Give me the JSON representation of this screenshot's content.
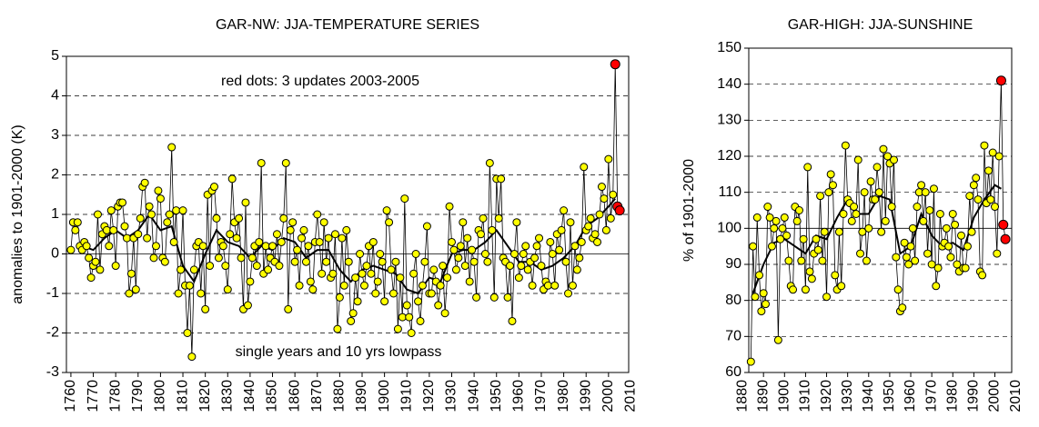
{
  "chart_data": [
    {
      "type": "line",
      "title": "GAR-NW: JJA-TEMPERATURE SERIES",
      "ylabel": "anomalies to 1901-2000 (K)",
      "annotations": [
        "red dots: 3 updates 2003-2005",
        "single years and 10 yrs lowpass"
      ],
      "xlim": [
        1758,
        2009
      ],
      "xticks": [
        1760,
        1770,
        1780,
        1790,
        1800,
        1810,
        1820,
        1830,
        1840,
        1850,
        1860,
        1870,
        1880,
        1890,
        1900,
        1910,
        1920,
        1930,
        1940,
        1950,
        1960,
        1970,
        1980,
        1990,
        2000,
        2010
      ],
      "ylim": [
        -3,
        5
      ],
      "yticks": [
        -3,
        -2,
        -1,
        0,
        1,
        2,
        3,
        4,
        5
      ],
      "grid": true,
      "baseline": 0,
      "series": [
        {
          "color": "#000000",
          "marker_color": "#ffff00",
          "highlight_color": "#ff0000",
          "highlight_from": 2003,
          "x": [
            1760,
            1761,
            1762,
            1763,
            1764,
            1765,
            1766,
            1767,
            1768,
            1769,
            1770,
            1771,
            1772,
            1773,
            1774,
            1775,
            1776,
            1777,
            1778,
            1779,
            1780,
            1781,
            1782,
            1783,
            1784,
            1785,
            1786,
            1787,
            1788,
            1789,
            1790,
            1791,
            1792,
            1793,
            1794,
            1795,
            1796,
            1797,
            1798,
            1799,
            1800,
            1801,
            1802,
            1803,
            1804,
            1805,
            1806,
            1807,
            1808,
            1809,
            1810,
            1811,
            1812,
            1813,
            1814,
            1815,
            1816,
            1817,
            1818,
            1819,
            1820,
            1821,
            1822,
            1823,
            1824,
            1825,
            1826,
            1827,
            1828,
            1829,
            1830,
            1831,
            1832,
            1833,
            1834,
            1835,
            1836,
            1837,
            1838,
            1839,
            1840,
            1841,
            1842,
            1843,
            1844,
            1845,
            1846,
            1847,
            1848,
            1849,
            1850,
            1851,
            1852,
            1853,
            1854,
            1855,
            1856,
            1857,
            1858,
            1859,
            1860,
            1861,
            1862,
            1863,
            1864,
            1865,
            1866,
            1867,
            1868,
            1869,
            1870,
            1871,
            1872,
            1873,
            1874,
            1875,
            1876,
            1877,
            1878,
            1879,
            1880,
            1881,
            1882,
            1883,
            1884,
            1885,
            1886,
            1887,
            1888,
            1889,
            1890,
            1891,
            1892,
            1893,
            1894,
            1895,
            1896,
            1897,
            1898,
            1899,
            1900,
            1901,
            1902,
            1903,
            1904,
            1905,
            1906,
            1907,
            1908,
            1909,
            1910,
            1911,
            1912,
            1913,
            1914,
            1915,
            1916,
            1917,
            1918,
            1919,
            1920,
            1921,
            1922,
            1923,
            1924,
            1925,
            1926,
            1927,
            1928,
            1929,
            1930,
            1931,
            1932,
            1933,
            1934,
            1935,
            1936,
            1937,
            1938,
            1939,
            1940,
            1941,
            1942,
            1943,
            1944,
            1945,
            1946,
            1947,
            1948,
            1949,
            1950,
            1951,
            1952,
            1953,
            1954,
            1955,
            1956,
            1957,
            1958,
            1959,
            1960,
            1961,
            1962,
            1963,
            1964,
            1965,
            1966,
            1967,
            1968,
            1969,
            1970,
            1971,
            1972,
            1973,
            1974,
            1975,
            1976,
            1977,
            1978,
            1979,
            1980,
            1981,
            1982,
            1983,
            1984,
            1985,
            1986,
            1987,
            1988,
            1989,
            1990,
            1991,
            1992,
            1993,
            1994,
            1995,
            1996,
            1997,
            1998,
            1999,
            2000,
            2001,
            2002,
            2003,
            2004,
            2005
          ],
          "values": [
            0.1,
            0.8,
            0.6,
            0.8,
            0.2,
            0.1,
            0.3,
            0.2,
            -0.1,
            -0.6,
            -0.3,
            -0.2,
            1.0,
            -0.4,
            0.5,
            0.7,
            0.6,
            0.2,
            1.1,
            0.6,
            -0.3,
            1.2,
            1.3,
            1.3,
            0.7,
            0.4,
            -1.0,
            -0.5,
            0.4,
            -0.9,
            0.5,
            0.9,
            1.7,
            1.8,
            0.4,
            1.2,
            1.0,
            -0.1,
            0.2,
            1.6,
            1.4,
            -0.1,
            -0.2,
            0.8,
            1.0,
            2.7,
            0.3,
            1.1,
            -1.0,
            -0.4,
            1.1,
            -0.8,
            -2.0,
            -0.8,
            -2.6,
            -0.4,
            0.2,
            0.3,
            -1.0,
            0.2,
            -1.4,
            1.5,
            -0.3,
            1.6,
            1.7,
            0.9,
            -0.1,
            0.3,
            0.2,
            -0.3,
            -0.9,
            0.5,
            1.9,
            0.8,
            0.4,
            0.9,
            -0.1,
            -1.4,
            1.3,
            -1.3,
            -0.7,
            -0.1,
            0.2,
            -0.3,
            0.3,
            2.3,
            -0.5,
            0.2,
            -0.4,
            -0.1,
            0.2,
            -0.2,
            0.5,
            -0.3,
            0.3,
            0.9,
            2.3,
            -1.4,
            0.6,
            0.8,
            -0.2,
            0.1,
            -0.8,
            0.4,
            0.6,
            -0.2,
            0.2,
            -0.7,
            -0.9,
            0.3,
            1.0,
            0.3,
            -0.5,
            0.8,
            -0.2,
            0.4,
            -0.6,
            -0.5,
            0.5,
            -1.9,
            -1.1,
            0.4,
            -0.8,
            0.6,
            -0.2,
            -1.7,
            -1.5,
            -0.6,
            -1.2,
            0.0,
            -0.5,
            -0.8,
            -0.3,
            0.2,
            -0.5,
            0.3,
            -1.0,
            -0.7,
            0.0,
            -0.2,
            -1.2,
            1.1,
            0.8,
            -0.4,
            -1.0,
            -0.2,
            -1.9,
            -0.6,
            -1.6,
            1.4,
            -1.3,
            -1.6,
            -2.0,
            -0.5,
            0.0,
            -1.2,
            -1.7,
            -0.8,
            -0.2,
            0.7,
            -1.0,
            -1.0,
            -0.4,
            -0.7,
            -1.3,
            -0.8,
            -0.3,
            -1.5,
            -0.6,
            1.2,
            0.3,
            0.1,
            -0.4,
            -0.1,
            0.2,
            0.8,
            -0.3,
            0.4,
            -0.7,
            0.1,
            -0.2,
            -1.1,
            0.6,
            0.5,
            0.9,
            0.0,
            -0.2,
            2.3,
            0.6,
            -1.1,
            1.9,
            0.9,
            1.9,
            -0.1,
            -0.2,
            -1.1,
            -0.3,
            -1.7,
            0.0,
            0.8,
            -0.6,
            -0.3,
            0.0,
            0.2,
            -0.4,
            -0.2,
            -0.8,
            -0.1,
            0.2,
            0.4,
            -0.3,
            -0.9,
            -0.7,
            -0.8,
            0.3,
            0.0,
            -0.8,
            0.5,
            0.1,
            0.6,
            1.1,
            -0.2,
            -1.0,
            0.8,
            -0.8,
            0.2,
            -0.4,
            -0.1,
            0.3,
            2.2,
            0.6,
            0.7,
            0.9,
            0.4,
            0.5,
            0.3,
            1.0,
            1.7,
            1.4,
            0.6,
            2.4,
            0.9,
            1.5,
            4.8,
            1.2,
            1.1
          ]
        },
        {
          "color": "#000000",
          "line_width": 2,
          "x": [
            1765,
            1770,
            1775,
            1780,
            1785,
            1790,
            1795,
            1800,
            1805,
            1810,
            1815,
            1820,
            1825,
            1830,
            1835,
            1840,
            1845,
            1850,
            1855,
            1860,
            1865,
            1870,
            1875,
            1880,
            1885,
            1890,
            1895,
            1900,
            1905,
            1910,
            1915,
            1920,
            1925,
            1930,
            1935,
            1940,
            1945,
            1950,
            1955,
            1960,
            1965,
            1970,
            1975,
            1980,
            1985,
            1990,
            1995,
            2000,
            2003
          ],
          "values": [
            0.2,
            0.1,
            0.4,
            0.6,
            0.4,
            0.6,
            1.0,
            0.6,
            0.7,
            -0.3,
            -0.7,
            0.0,
            0.6,
            0.3,
            0.2,
            -0.1,
            0.2,
            0.1,
            0.4,
            0.3,
            -0.1,
            0.1,
            0.1,
            -0.4,
            -0.7,
            -0.4,
            -0.3,
            -0.4,
            -0.5,
            -0.9,
            -1.0,
            -0.6,
            -0.7,
            0.0,
            0.1,
            0.1,
            0.3,
            0.6,
            0.2,
            -0.2,
            -0.2,
            -0.4,
            -0.3,
            -0.1,
            0.2,
            0.7,
            0.9,
            1.2,
            1.4
          ]
        }
      ]
    },
    {
      "type": "line",
      "title": "GAR-HIGH: JJA-SUNSHINE",
      "ylabel": "% of 1901-2000",
      "xlim": [
        1883,
        2008
      ],
      "xticks": [
        1880,
        1890,
        1900,
        1910,
        1920,
        1930,
        1940,
        1950,
        1960,
        1970,
        1980,
        1990,
        2000,
        2010
      ],
      "ylim": [
        60,
        150
      ],
      "yticks": [
        60,
        70,
        80,
        90,
        100,
        110,
        120,
        130,
        140,
        150
      ],
      "grid": true,
      "baseline": 100,
      "series": [
        {
          "color": "#000000",
          "marker_color": "#ffff00",
          "highlight_color": "#ff0000",
          "highlight_from": 2003,
          "x": [
            1884,
            1885,
            1886,
            1887,
            1888,
            1889,
            1890,
            1891,
            1892,
            1893,
            1894,
            1895,
            1896,
            1897,
            1898,
            1899,
            1900,
            1901,
            1902,
            1903,
            1904,
            1905,
            1906,
            1907,
            1908,
            1909,
            1910,
            1911,
            1912,
            1913,
            1914,
            1915,
            1916,
            1917,
            1918,
            1919,
            1920,
            1921,
            1922,
            1923,
            1924,
            1925,
            1926,
            1927,
            1928,
            1929,
            1930,
            1931,
            1932,
            1933,
            1934,
            1935,
            1936,
            1937,
            1938,
            1939,
            1940,
            1941,
            1942,
            1943,
            1944,
            1945,
            1946,
            1947,
            1948,
            1949,
            1950,
            1951,
            1952,
            1953,
            1954,
            1955,
            1956,
            1957,
            1958,
            1959,
            1960,
            1961,
            1962,
            1963,
            1964,
            1965,
            1966,
            1967,
            1968,
            1969,
            1970,
            1971,
            1972,
            1973,
            1974,
            1975,
            1976,
            1977,
            1978,
            1979,
            1980,
            1981,
            1982,
            1983,
            1984,
            1985,
            1986,
            1987,
            1988,
            1989,
            1990,
            1991,
            1992,
            1993,
            1994,
            1995,
            1996,
            1997,
            1998,
            1999,
            2000,
            2001,
            2002,
            2003,
            2004,
            2005
          ],
          "values": [
            63,
            95,
            81,
            103,
            87,
            77,
            82,
            79,
            106,
            103,
            95,
            100,
            102,
            69,
            97,
            100,
            103,
            98,
            91,
            84,
            83,
            106,
            102,
            105,
            91,
            97,
            83,
            117,
            88,
            86,
            93,
            97,
            94,
            109,
            91,
            99,
            81,
            110,
            115,
            112,
            87,
            83,
            99,
            84,
            104,
            123,
            108,
            107,
            102,
            106,
            104,
            119,
            93,
            99,
            110,
            91,
            100,
            113,
            108,
            108,
            117,
            110,
            99,
            122,
            102,
            120,
            118,
            106,
            119,
            92,
            83,
            77,
            78,
            96,
            92,
            90,
            95,
            100,
            91,
            106,
            110,
            112,
            102,
            110,
            93,
            105,
            90,
            111,
            84,
            89,
            104,
            95,
            96,
            100,
            95,
            92,
            104,
            101,
            90,
            88,
            98,
            89,
            89,
            95,
            109,
            99,
            112,
            114,
            108,
            88,
            87,
            123,
            107,
            116,
            108,
            121,
            106,
            93,
            120,
            141,
            101,
            97
          ]
        },
        {
          "color": "#000000",
          "line_width": 2,
          "x": [
            1885,
            1890,
            1895,
            1900,
            1905,
            1910,
            1915,
            1920,
            1925,
            1930,
            1935,
            1940,
            1945,
            1950,
            1955,
            1960,
            1965,
            1970,
            1975,
            1980,
            1985,
            1990,
            1995,
            2000,
            2003
          ],
          "values": [
            82,
            90,
            96,
            97,
            95,
            93,
            98,
            97,
            103,
            108,
            104,
            104,
            109,
            108,
            93,
            95,
            104,
            98,
            95,
            96,
            94,
            103,
            108,
            112,
            111
          ]
        }
      ]
    }
  ]
}
